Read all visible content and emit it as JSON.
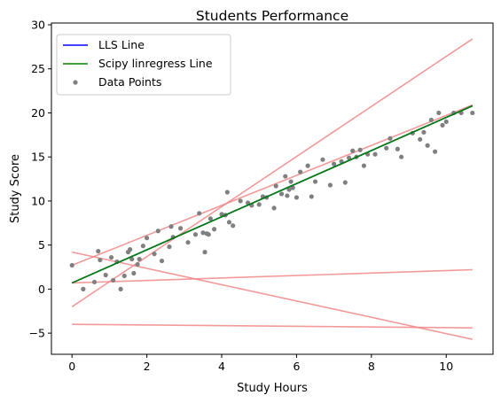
{
  "chart_data": {
    "type": "scatter",
    "title": "Students Performance",
    "xlabel": "Study Hours",
    "ylabel": "Study Score",
    "xlim": [
      -0.55,
      11.25
    ],
    "ylim": [
      -7.4,
      30.2
    ],
    "xticks": [
      0,
      2,
      4,
      6,
      8,
      10
    ],
    "yticks": [
      -5,
      0,
      5,
      10,
      15,
      20,
      25,
      30
    ],
    "grid": false,
    "legend_position": "top-left",
    "colors": {
      "lls": "#0000ff",
      "scipy": "#008000",
      "points": "#808080",
      "iterations": "#f08080"
    },
    "series": [
      {
        "name": "LLS Line",
        "kind": "line",
        "x": [
          0,
          10.7
        ],
        "y": [
          0.7,
          20.8
        ]
      },
      {
        "name": "Scipy linregress Line",
        "kind": "line",
        "x": [
          0,
          10.7
        ],
        "y": [
          0.7,
          20.8
        ]
      },
      {
        "name": "Data Points",
        "kind": "scatter",
        "x": [
          0.0,
          0.3,
          0.6,
          0.7,
          0.75,
          0.9,
          1.05,
          1.1,
          1.2,
          1.3,
          1.4,
          1.5,
          1.55,
          1.6,
          1.65,
          1.75,
          1.8,
          1.9,
          2.0,
          2.2,
          2.3,
          2.4,
          2.6,
          2.65,
          2.7,
          2.9,
          3.1,
          3.3,
          3.4,
          3.5,
          3.55,
          3.6,
          3.65,
          3.7,
          3.8,
          4.0,
          4.1,
          4.15,
          4.2,
          4.3,
          4.5,
          4.7,
          4.8,
          5.0,
          5.1,
          5.2,
          5.4,
          5.45,
          5.6,
          5.7,
          5.75,
          5.8,
          5.85,
          5.9,
          6.0,
          6.1,
          6.3,
          6.4,
          6.5,
          6.7,
          6.9,
          7.0,
          7.2,
          7.3,
          7.4,
          7.5,
          7.6,
          7.7,
          7.8,
          7.9,
          8.1,
          8.4,
          8.5,
          8.7,
          8.8,
          9.1,
          9.3,
          9.4,
          9.5,
          9.6,
          9.7,
          9.8,
          9.9,
          10.0,
          10.2,
          10.4,
          10.7
        ],
        "y": [
          2.7,
          0.0,
          0.8,
          4.3,
          3.3,
          1.6,
          3.6,
          1.0,
          3.1,
          0.0,
          1.5,
          4.2,
          4.5,
          3.4,
          1.8,
          2.8,
          3.4,
          4.9,
          5.8,
          4.0,
          6.6,
          3.2,
          4.8,
          7.1,
          5.9,
          6.9,
          5.3,
          6.2,
          8.6,
          6.4,
          4.2,
          6.3,
          6.2,
          8.0,
          6.8,
          8.5,
          8.4,
          11.0,
          7.6,
          7.2,
          10.0,
          9.8,
          9.5,
          9.6,
          10.5,
          10.4,
          9.2,
          11.7,
          10.8,
          12.8,
          10.6,
          11.3,
          12.2,
          11.5,
          10.4,
          13.3,
          14.0,
          10.5,
          12.2,
          14.7,
          11.8,
          14.2,
          14.5,
          12.1,
          14.9,
          15.7,
          15.0,
          15.8,
          14.0,
          15.3,
          15.3,
          16.0,
          17.1,
          15.9,
          15.0,
          17.7,
          17.0,
          17.8,
          16.3,
          19.2,
          15.6,
          20.0,
          18.6,
          19.0,
          20.0,
          20.0,
          20.0
        ]
      },
      {
        "kind": "line",
        "x": [
          0,
          10.7
        ],
        "y": [
          -4.0,
          -4.4
        ]
      },
      {
        "kind": "line",
        "x": [
          0,
          10.7
        ],
        "y": [
          4.2,
          -5.7
        ]
      },
      {
        "kind": "line",
        "x": [
          0,
          10.7
        ],
        "y": [
          0.7,
          2.2
        ]
      },
      {
        "kind": "line",
        "x": [
          0,
          10.7
        ],
        "y": [
          -2.0,
          28.4
        ]
      },
      {
        "kind": "line",
        "x": [
          0,
          10.7
        ],
        "y": [
          2.7,
          20.9
        ]
      }
    ]
  }
}
